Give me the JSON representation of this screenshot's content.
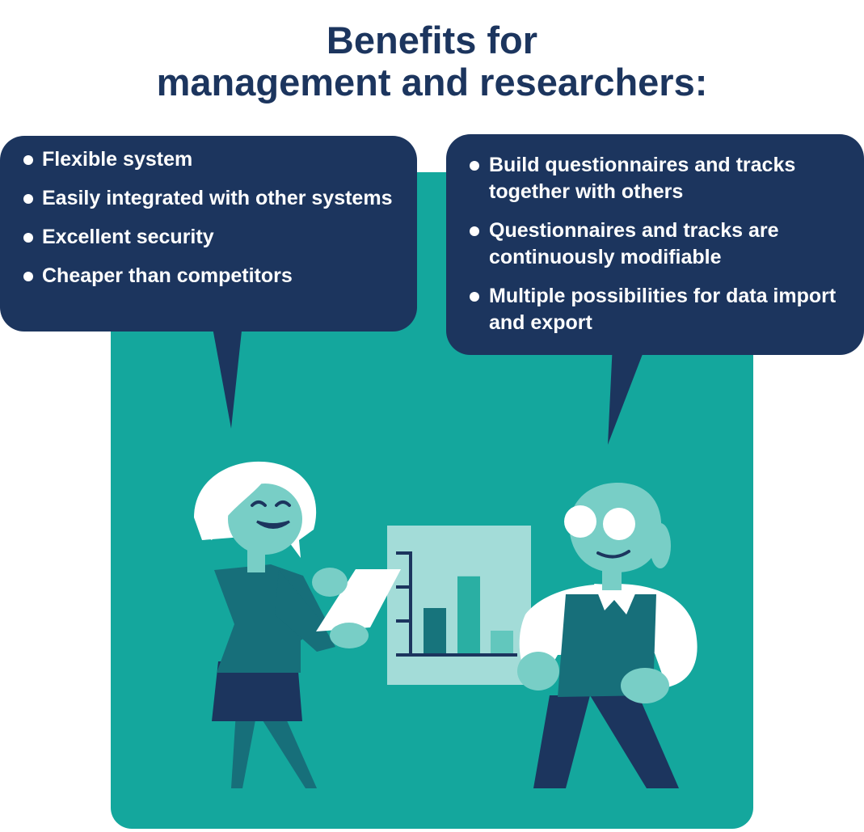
{
  "title": {
    "line1": "Benefits for",
    "line2": "management and researchers:"
  },
  "left_bubble": {
    "items": [
      "Flexible system",
      "Easily integrated with other systems",
      "Excellent security",
      "Cheaper than competitors"
    ]
  },
  "right_bubble": {
    "items": [
      "Build questionnaires and tracks together with others",
      "Questionnaires and tracks are continuously modifiable",
      "Multiple possibilities for data import and export"
    ]
  },
  "colors": {
    "navy": "#1c355e",
    "teal_panel": "#14a79d",
    "dark_teal": "#176f7a",
    "skin": "#78cec6",
    "chart_board": "#a3dcd8",
    "bar_dark": "#17747c",
    "bar_mid": "#2aafa3",
    "bar_light": "#62c7bd",
    "white": "#ffffff"
  },
  "illustration": {
    "figures": [
      "woman-with-tablet",
      "man-with-glasses"
    ],
    "chart_bars_relative": [
      0.5,
      0.85,
      0.25
    ]
  }
}
